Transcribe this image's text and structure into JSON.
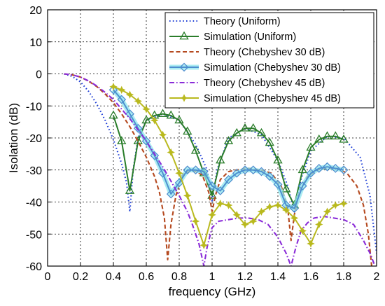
{
  "chart_data": {
    "type": "line",
    "xlabel": "frequency (GHz)",
    "ylabel": "Isolation (dB)",
    "xlim": [
      0,
      2
    ],
    "ylim": [
      -60,
      20
    ],
    "xticks": [
      0,
      0.2,
      0.4,
      0.6,
      0.8,
      1,
      1.2,
      1.4,
      1.6,
      1.8,
      2
    ],
    "xtick_labels": [
      "0",
      "0.2",
      "0.4",
      "0.6",
      "0.8",
      "1",
      "1.2",
      "1.4",
      "1.6",
      "1.8",
      "2"
    ],
    "yticks": [
      20,
      10,
      0,
      -10,
      -20,
      -30,
      -40,
      -50,
      -60
    ],
    "ytick_labels": [
      "20",
      "10",
      "0",
      "-10",
      "-20",
      "-30",
      "-40",
      "-50",
      "-60"
    ],
    "grid": true,
    "legend_position": "top-right",
    "series": [
      {
        "name": "Theory (Uniform)",
        "color": "#1f3fd6",
        "style": "dotted",
        "marker": "none",
        "x": [
          0.1,
          0.15,
          0.2,
          0.25,
          0.3,
          0.35,
          0.4,
          0.45,
          0.48,
          0.5,
          0.52,
          0.55,
          0.6,
          0.7,
          0.8,
          0.9,
          0.97,
          1.0,
          1.03,
          1.1,
          1.2,
          1.3,
          1.4,
          1.46,
          1.5,
          1.54,
          1.6,
          1.7,
          1.8,
          1.9,
          1.96,
          2.0
        ],
        "y": [
          0,
          -0.8,
          -2.5,
          -5.5,
          -9.5,
          -14.5,
          -20.5,
          -28,
          -34,
          -43,
          -30,
          -20,
          -14.5,
          -12.5,
          -14.5,
          -22,
          -30,
          -40,
          -30,
          -20,
          -17,
          -19,
          -27,
          -35,
          -43,
          -33,
          -24,
          -19.5,
          -20,
          -26,
          -38,
          -56
        ]
      },
      {
        "name": "Simulation (Uniform)",
        "color": "#2a7d2a",
        "style": "solid",
        "marker": "triangle",
        "x": [
          0.4,
          0.45,
          0.5,
          0.55,
          0.6,
          0.65,
          0.7,
          0.75,
          0.8,
          0.85,
          0.9,
          0.95,
          1.0,
          1.05,
          1.1,
          1.15,
          1.2,
          1.25,
          1.3,
          1.35,
          1.4,
          1.45,
          1.5,
          1.55,
          1.6,
          1.65,
          1.7,
          1.75,
          1.8
        ],
        "y": [
          -13,
          -21,
          -36.5,
          -21,
          -14.5,
          -13,
          -12.5,
          -13,
          -14.5,
          -18,
          -24,
          -31,
          -38,
          -27,
          -21,
          -18.5,
          -17,
          -17,
          -18.5,
          -21.5,
          -27,
          -36,
          -41,
          -30,
          -23,
          -20.5,
          -19.5,
          -19.5,
          -20.5
        ]
      },
      {
        "name": "Theory (Chebyshev 30 dB)",
        "color": "#b5491f",
        "style": "dashed",
        "marker": "none",
        "x": [
          0.1,
          0.15,
          0.2,
          0.25,
          0.3,
          0.35,
          0.4,
          0.45,
          0.5,
          0.55,
          0.6,
          0.65,
          0.68,
          0.71,
          0.73,
          0.75,
          0.78,
          0.82,
          0.88,
          0.94,
          0.98,
          1.0,
          1.02,
          1.05,
          1.1,
          1.15,
          1.22,
          1.3,
          1.36,
          1.42,
          1.46,
          1.48,
          1.5,
          1.53,
          1.58,
          1.64,
          1.7,
          1.76,
          1.82,
          1.88,
          1.92,
          1.95,
          1.97
        ],
        "y": [
          0,
          -0.3,
          -1,
          -2.3,
          -4,
          -6.3,
          -9,
          -12.5,
          -16.5,
          -21,
          -26,
          -32,
          -37,
          -45,
          -58,
          -47,
          -38,
          -31.5,
          -30,
          -31.5,
          -37,
          -43,
          -38,
          -33,
          -30.5,
          -30,
          -29.5,
          -30,
          -31,
          -35,
          -42,
          -52,
          -44,
          -37,
          -32,
          -30,
          -29.5,
          -29.5,
          -31,
          -35,
          -41,
          -50,
          -60
        ]
      },
      {
        "name": "Simulation (Chebyshev 30 dB)",
        "color": "#4d8fcf",
        "glow": "#8ee6ee",
        "style": "solid",
        "marker": "diamond",
        "x": [
          0.4,
          0.45,
          0.5,
          0.55,
          0.6,
          0.65,
          0.7,
          0.75,
          0.8,
          0.85,
          0.9,
          0.95,
          1.0,
          1.05,
          1.1,
          1.15,
          1.2,
          1.25,
          1.3,
          1.35,
          1.4,
          1.45,
          1.5,
          1.55,
          1.6,
          1.65,
          1.7,
          1.75,
          1.8
        ],
        "y": [
          -5,
          -8,
          -12.5,
          -17,
          -21,
          -25.5,
          -31,
          -37.5,
          -34,
          -30,
          -30,
          -30.5,
          -35,
          -36.5,
          -33,
          -31,
          -30,
          -30,
          -30.5,
          -32,
          -34.5,
          -41,
          -42,
          -35,
          -31,
          -29.5,
          -29,
          -29.5,
          -30
        ]
      },
      {
        "name": "Theory (Chebyshev 45 dB)",
        "color": "#8a2bd8",
        "style": "dashdot",
        "marker": "none",
        "x": [
          0.1,
          0.15,
          0.2,
          0.25,
          0.3,
          0.35,
          0.4,
          0.45,
          0.5,
          0.55,
          0.6,
          0.65,
          0.7,
          0.75,
          0.8,
          0.85,
          0.88,
          0.92,
          0.95,
          0.97,
          1.0,
          1.04,
          1.1,
          1.16,
          1.22,
          1.28,
          1.34,
          1.4,
          1.45,
          1.48,
          1.51,
          1.54,
          1.58,
          1.62,
          1.68,
          1.74,
          1.8,
          1.86,
          1.92,
          1.96,
          1.99
        ],
        "y": [
          0,
          -0.3,
          -1,
          -2.2,
          -3.8,
          -5.8,
          -8,
          -11,
          -14,
          -17.5,
          -21,
          -25,
          -29,
          -33.5,
          -38,
          -43,
          -47,
          -53,
          -60,
          -54,
          -48,
          -46,
          -45.5,
          -45,
          -45,
          -45.5,
          -47,
          -51,
          -56,
          -60,
          -54,
          -49,
          -46.5,
          -45,
          -44.5,
          -45,
          -45.5,
          -47,
          -52,
          -56,
          -60
        ]
      },
      {
        "name": "Simulation (Chebyshev 45 dB)",
        "color": "#b9b91e",
        "style": "solid",
        "marker": "star",
        "x": [
          0.4,
          0.45,
          0.5,
          0.55,
          0.6,
          0.65,
          0.7,
          0.75,
          0.8,
          0.85,
          0.9,
          0.95,
          1.0,
          1.05,
          1.1,
          1.15,
          1.2,
          1.25,
          1.3,
          1.35,
          1.4,
          1.45,
          1.5,
          1.55,
          1.6,
          1.65,
          1.7,
          1.75,
          1.8
        ],
        "y": [
          -4,
          -5,
          -6.5,
          -8.5,
          -11,
          -14.5,
          -19,
          -24.5,
          -31,
          -38,
          -46,
          -53.5,
          -44,
          -40.5,
          -41,
          -44,
          -47,
          -46,
          -43,
          -41.5,
          -41,
          -42.5,
          -45,
          -49,
          -53,
          -47,
          -43,
          -41,
          -40.5
        ]
      }
    ]
  }
}
